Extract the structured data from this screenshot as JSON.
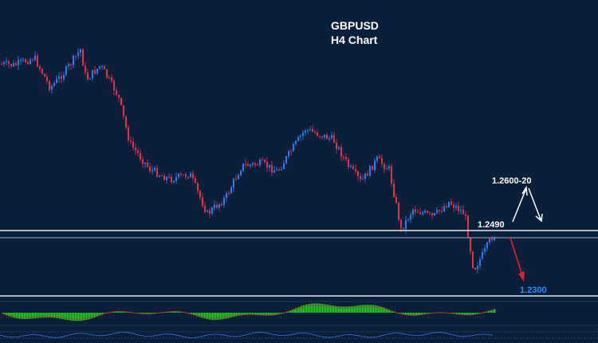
{
  "chart_data": {
    "type": "candlestick",
    "title": "GBPUSD",
    "subtitle": "H4 Chart",
    "levels": [
      {
        "price": 1.249,
        "label": "1.2490",
        "color": "#ffffff"
      },
      {
        "price": 1.23,
        "label": "1.2300",
        "color": "#1e90ff"
      }
    ],
    "target_up_label": "1.2600-20",
    "colors": {
      "background": "#0b1f3a",
      "bull": "#2d7bf0",
      "bear": "#e0334b",
      "level_line": "#e6e6e6",
      "arrow_up": "#ffffff",
      "arrow_down": "#e0202e",
      "oscillator": "#2ecc40"
    }
  }
}
